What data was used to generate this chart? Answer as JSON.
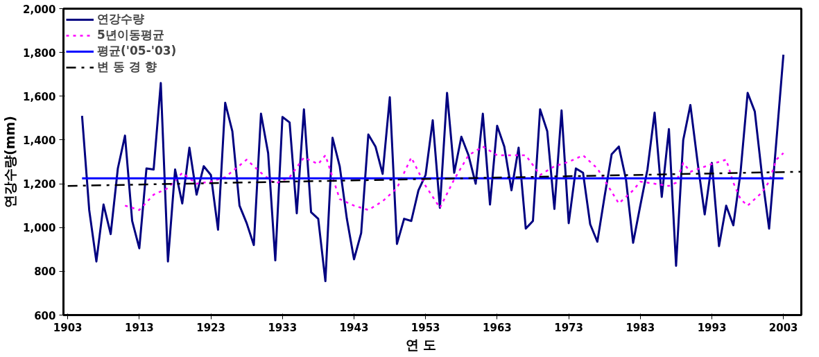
{
  "chart_data": {
    "type": "line",
    "xlabel": "연      도",
    "ylabel": "연강수량(mm)",
    "xlim": [
      1902.4,
      2005.5
    ],
    "xticks": [
      1903,
      1913,
      1923,
      1933,
      1943,
      1953,
      1963,
      1973,
      1983,
      1993,
      2003
    ],
    "ylim": [
      600,
      2000
    ],
    "yticks": [
      {
        "value": 600,
        "label": "600"
      },
      {
        "value": 800,
        "label": "800"
      },
      {
        "value": 1000,
        "label": "1,000"
      },
      {
        "value": 1200,
        "label": "1,200"
      },
      {
        "value": 1400,
        "label": "1,400"
      },
      {
        "value": 1600,
        "label": "1,600"
      },
      {
        "value": 1800,
        "label": "1,800"
      },
      {
        "value": 2000,
        "label": "2,000"
      }
    ],
    "grid": false,
    "legend": "top left",
    "marker": "none",
    "series": [
      {
        "name": "연강수량",
        "color": "#000080",
        "line_style": "solid",
        "x": [
          1905,
          1906,
          1907,
          1908,
          1909,
          1910,
          1911,
          1912,
          1913,
          1914,
          1915,
          1916,
          1917,
          1918,
          1919,
          1920,
          1921,
          1922,
          1923,
          1924,
          1925,
          1926,
          1927,
          1928,
          1929,
          1930,
          1931,
          1932,
          1933,
          1934,
          1935,
          1936,
          1937,
          1938,
          1939,
          1940,
          1941,
          1942,
          1943,
          1944,
          1945,
          1946,
          1947,
          1948,
          1949,
          1950,
          1951,
          1952,
          1953,
          1954,
          1955,
          1956,
          1957,
          1958,
          1959,
          1960,
          1961,
          1962,
          1963,
          1964,
          1965,
          1966,
          1967,
          1968,
          1969,
          1970,
          1971,
          1972,
          1973,
          1974,
          1975,
          1976,
          1977,
          1978,
          1979,
          1980,
          1981,
          1982,
          1983,
          1984,
          1985,
          1986,
          1987,
          1988,
          1989,
          1990,
          1991,
          1992,
          1993,
          1994,
          1995,
          1996,
          1997,
          1998,
          1999,
          2000,
          2001,
          2002,
          2003
        ],
        "values": [
          1510,
          1080,
          845,
          1105,
          970,
          1270,
          1420,
          1030,
          905,
          1270,
          1265,
          1660,
          845,
          1265,
          1110,
          1365,
          1150,
          1280,
          1240,
          990,
          1570,
          1440,
          1100,
          1020,
          920,
          1520,
          1340,
          850,
          1505,
          1480,
          1065,
          1540,
          1070,
          1040,
          755,
          1410,
          1280,
          1040,
          855,
          975,
          1425,
          1370,
          1245,
          1595,
          925,
          1040,
          1030,
          1170,
          1240,
          1490,
          1090,
          1615,
          1250,
          1415,
          1330,
          1200,
          1520,
          1105,
          1465,
          1370,
          1170,
          1365,
          995,
          1030,
          1540,
          1440,
          1085,
          1535,
          1020,
          1270,
          1250,
          1015,
          935,
          1140,
          1335,
          1370,
          1220,
          930,
          1100,
          1265,
          1525,
          1140,
          1450,
          825,
          1400,
          1560,
          1300,
          1060,
          1295,
          915,
          1100,
          1010,
          1250,
          1615,
          1530,
          1240,
          995,
          1390,
          1790
        ]
      },
      {
        "name": "5년이동평균",
        "color": "#ff00ff",
        "line_style": "dotted",
        "x": [
          1911,
          1913,
          1915,
          1917,
          1919,
          1921,
          1923,
          1925,
          1928,
          1930,
          1932,
          1934,
          1936,
          1938,
          1939,
          1941,
          1943,
          1945,
          1947,
          1949,
          1951,
          1953,
          1955,
          1957,
          1959,
          1961,
          1963,
          1965,
          1967,
          1969,
          1971,
          1973,
          1975,
          1977,
          1980,
          1982,
          1983,
          1985,
          1987,
          1988,
          1989,
          1990,
          1993,
          1995,
          1996,
          1997,
          1998,
          2000,
          2001,
          2002,
          2003
        ],
        "values": [
          1100,
          1080,
          1150,
          1180,
          1250,
          1200,
          1210,
          1230,
          1310,
          1250,
          1200,
          1230,
          1320,
          1290,
          1330,
          1130,
          1100,
          1080,
          1120,
          1180,
          1320,
          1190,
          1090,
          1220,
          1330,
          1370,
          1330,
          1330,
          1330,
          1240,
          1280,
          1300,
          1330,
          1270,
          1110,
          1170,
          1210,
          1200,
          1190,
          1205,
          1295,
          1255,
          1290,
          1310,
          1205,
          1130,
          1100,
          1160,
          1210,
          1310,
          1340
        ]
      },
      {
        "name": "평균('05-'03)",
        "color": "#0000ff",
        "line_style": "solid",
        "x": [
          1905,
          2003
        ],
        "values": [
          1225,
          1225
        ]
      },
      {
        "name": "변 동 경 향",
        "color": "#000000",
        "line_style": "dashed",
        "x": [
          1903,
          2005.5
        ],
        "values": [
          1190,
          1255
        ]
      }
    ]
  }
}
